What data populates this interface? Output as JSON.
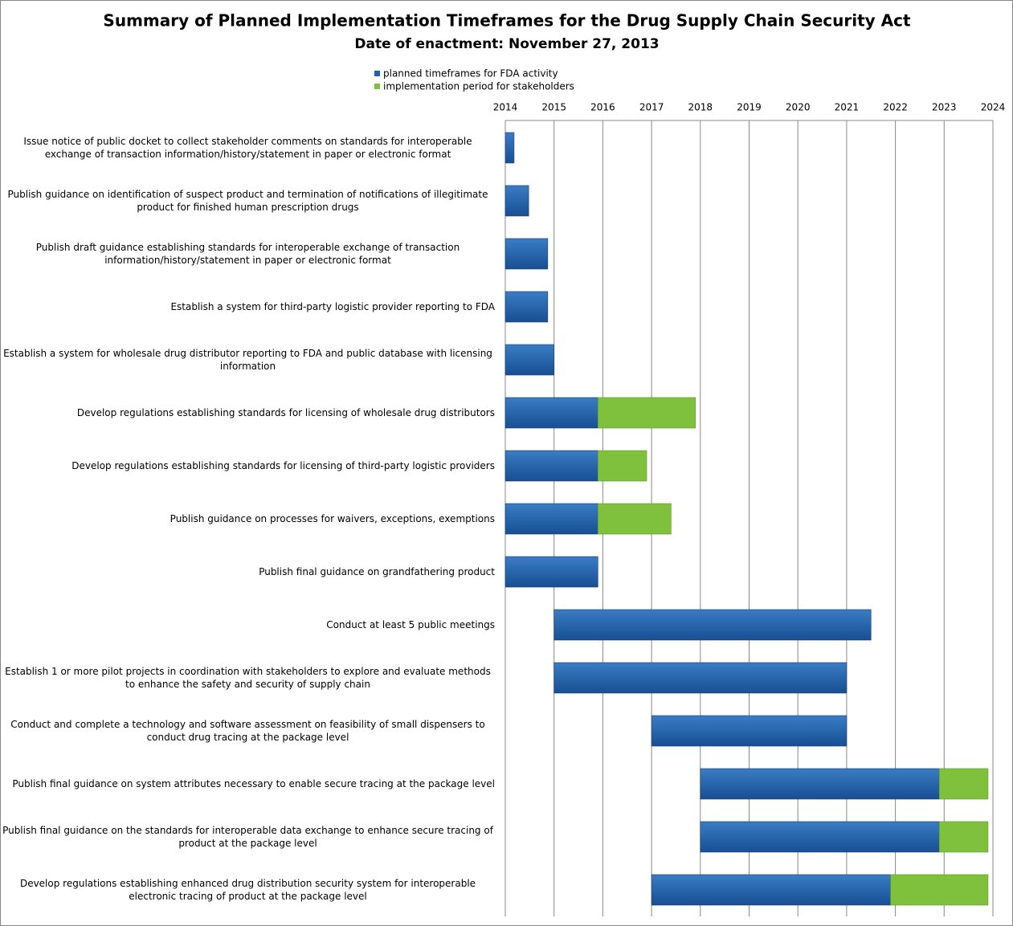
{
  "chart_data": {
    "type": "gantt",
    "title": "Summary of Planned Implementation Timeframes for the Drug Supply Chain Security Act",
    "subtitle": "Date of enactment:  November 27, 2013",
    "categories": [
      "Issue notice of public docket to collect stakeholder comments on standards for interoperable exchange of transaction information/history/statement in paper or electronic format",
      "Publish guidance on identification of suspect product and termination of notifications of illegitimate product for finished human prescription drugs",
      "Publish draft guidance establishing standards for interoperable exchange of transaction information/history/statement in paper or electronic format",
      "Establish a system for third-party logistic provider reporting to FDA",
      "Establish a system for wholesale drug distributor reporting to FDA and public database with licensing information",
      "Develop regulations establishing standards for licensing of wholesale drug distributors",
      "Develop regulations establishing standards for licensing of third-party logistic providers",
      "Publish guidance on processes for waivers, exceptions, exemptions",
      "Publish final guidance on grandfathering product",
      "Conduct at least 5 public meetings",
      "Establish 1 or more pilot projects in coordination with stakeholders to explore and evaluate methods to enhance the safety and security of supply chain",
      "Conduct and complete a technology and software assessment on feasibility of small dispensers to conduct drug tracing at the package level",
      "Publish final guidance on system attributes necessary to enable secure tracing at the package level",
      "Publish final guidance on the standards for interoperable data exchange to enhance secure tracing of product at the package level",
      "Develop regulations establishing enhanced drug distribution security system for interoperable electronic tracing of product at the package level"
    ],
    "series": [
      {
        "name": "planned timeframes for FDA activity",
        "color": "#2063ad",
        "start": [
          2014,
          2014,
          2014,
          2014,
          2014,
          2014,
          2014,
          2014,
          2014,
          2015,
          2015,
          2017,
          2018,
          2018,
          2017
        ],
        "end": [
          2014.18,
          2014.48,
          2014.87,
          2014.87,
          2015,
          2015.9,
          2015.9,
          2015.9,
          2015.9,
          2021.5,
          2021,
          2021,
          2022.9,
          2022.9,
          2021.9
        ]
      },
      {
        "name": "implementation period for stakeholders",
        "color": "#7fc03c",
        "start": [
          null,
          null,
          null,
          null,
          null,
          2015.9,
          2015.9,
          2015.9,
          null,
          null,
          null,
          null,
          2022.9,
          2022.9,
          2021.9
        ],
        "end": [
          null,
          null,
          null,
          null,
          null,
          2017.9,
          2016.9,
          2017.4,
          null,
          null,
          null,
          null,
          2023.9,
          2023.9,
          2023.9
        ]
      }
    ],
    "xlim": [
      2014,
      2024
    ],
    "xticks": [
      2014,
      2015,
      2016,
      2017,
      2018,
      2019,
      2020,
      2021,
      2022,
      2023,
      2024
    ],
    "grid": true
  }
}
